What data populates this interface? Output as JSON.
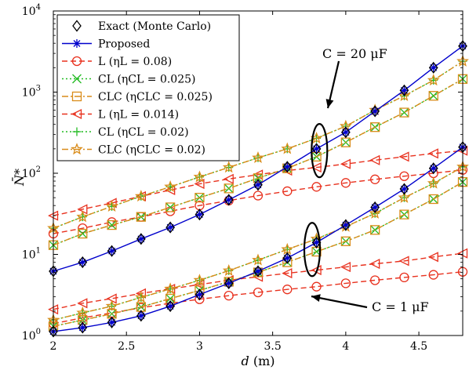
{
  "chart_data": {
    "type": "line",
    "xlabel": "d (m)",
    "ylabel": "N̄*",
    "xlim": [
      2,
      4.8
    ],
    "ylim": [
      1,
      10000
    ],
    "yscale": "log",
    "grid": false,
    "legend_position": "top-left",
    "x_ticks": [
      "2",
      "2.5",
      "3",
      "3.5",
      "4",
      "4.5"
    ],
    "y_ticks": [
      "10^0",
      "10^1",
      "10^2",
      "10^3",
      "10^4"
    ],
    "x": [
      2.0,
      2.2,
      2.4,
      2.6,
      2.8,
      3.0,
      3.2,
      3.4,
      3.6,
      3.8,
      4.0,
      4.2,
      4.4,
      4.6,
      4.8
    ],
    "annotations": {
      "top": "C = 20 μF",
      "bottom": "C = 1 μF"
    },
    "series": [
      {
        "name": "Exact (Monte Carlo)",
        "group": "C = 20 μF",
        "values": [
          6.2,
          8.0,
          11.0,
          15.5,
          21.5,
          31.0,
          47.0,
          72.0,
          120.0,
          200.0,
          320.0,
          580.0,
          1050.0,
          2000.0,
          3700.0
        ]
      },
      {
        "name": "Proposed",
        "group": "C = 20 μF",
        "values": [
          6.2,
          8.0,
          11.0,
          15.5,
          21.5,
          31.0,
          47.0,
          72.0,
          120.0,
          200.0,
          320.0,
          580.0,
          1050.0,
          2000.0,
          3700.0
        ]
      },
      {
        "name": "L (ηL = 0.08)",
        "group": "C = 20 μF",
        "values": [
          18.0,
          21.0,
          25.0,
          29.0,
          34.0,
          40.0,
          46.0,
          53.0,
          60.0,
          68.0,
          76.0,
          84.0,
          92.0,
          100.0,
          110.0
        ]
      },
      {
        "name": "CL (ηCL = 0.025)",
        "group": "C = 20 μF",
        "values": [
          13.0,
          18.0,
          23.0,
          29.0,
          38.0,
          50.0,
          65.0,
          87.0,
          115.0,
          160.0,
          240.0,
          370.0,
          560.0,
          900.0,
          1450.0
        ]
      },
      {
        "name": "CLC (ηCLC = 0.025)",
        "group": "C = 20 μF",
        "values": [
          13.0,
          18.0,
          23.0,
          29.0,
          38.0,
          50.0,
          65.0,
          87.0,
          115.0,
          160.0,
          240.0,
          370.0,
          560.0,
          900.0,
          1450.0
        ]
      },
      {
        "name": "L (ηL = 0.014)",
        "group": "C = 20 μF",
        "values": [
          30.0,
          36.0,
          43.0,
          52.0,
          62.0,
          74.0,
          85.0,
          96.0,
          108.0,
          118.0,
          130.0,
          145.0,
          160.0,
          175.0,
          190.0
        ]
      },
      {
        "name": "CL (ηCL = 0.02)",
        "group": "C = 20 μF",
        "values": [
          21.0,
          29.0,
          39.0,
          52.0,
          68.0,
          90.0,
          118.0,
          155.0,
          200.0,
          270.0,
          380.0,
          600.0,
          900.0,
          1400.0,
          2400.0
        ]
      },
      {
        "name": "CLC (ηCLC = 0.02)",
        "group": "C = 20 μF",
        "values": [
          21.0,
          29.0,
          39.0,
          52.0,
          68.0,
          90.0,
          118.0,
          155.0,
          200.0,
          270.0,
          380.0,
          600.0,
          900.0,
          1400.0,
          2400.0
        ]
      },
      {
        "name": "Exact (Monte Carlo)",
        "group": "C = 1 μF",
        "values": [
          1.12,
          1.25,
          1.45,
          1.75,
          2.3,
          3.2,
          4.4,
          6.2,
          9.0,
          14.0,
          23.0,
          38.0,
          64.0,
          115.0,
          210.0
        ]
      },
      {
        "name": "Proposed",
        "group": "C = 1 μF",
        "values": [
          1.12,
          1.25,
          1.45,
          1.75,
          2.3,
          3.2,
          4.4,
          6.2,
          9.0,
          14.0,
          23.0,
          38.0,
          64.0,
          115.0,
          210.0
        ]
      },
      {
        "name": "L (ηL = 0.08)",
        "group": "C = 1 μF",
        "values": [
          1.4,
          1.65,
          1.9,
          2.2,
          2.5,
          2.8,
          3.1,
          3.4,
          3.7,
          4.0,
          4.4,
          4.8,
          5.2,
          5.6,
          6.1
        ]
      },
      {
        "name": "CL (ηCL = 0.025)",
        "group": "C = 1 μF",
        "values": [
          1.3,
          1.55,
          1.85,
          2.25,
          2.85,
          3.6,
          4.6,
          6.0,
          8.0,
          10.8,
          14.5,
          20.0,
          31.0,
          48.0,
          78.0
        ]
      },
      {
        "name": "CLC (ηCLC = 0.025)",
        "group": "C = 1 μF",
        "values": [
          1.3,
          1.55,
          1.85,
          2.25,
          2.85,
          3.6,
          4.6,
          6.0,
          8.0,
          10.8,
          14.5,
          20.0,
          31.0,
          48.0,
          78.0
        ]
      },
      {
        "name": "L (ηL = 0.014)",
        "group": "C = 1 μF",
        "values": [
          2.1,
          2.5,
          2.85,
          3.3,
          3.75,
          4.25,
          4.8,
          5.3,
          5.85,
          6.4,
          7.0,
          7.65,
          8.3,
          9.3,
          10.3
        ]
      },
      {
        "name": "CL (ηCL = 0.02)",
        "group": "C = 1 μF",
        "values": [
          1.55,
          1.9,
          2.3,
          2.95,
          3.75,
          4.8,
          6.3,
          8.5,
          11.5,
          15.5,
          22.0,
          32.0,
          50.0,
          75.0,
          120.0
        ]
      },
      {
        "name": "CLC (ηCLC = 0.02)",
        "group": "C = 1 μF",
        "values": [
          1.55,
          1.9,
          2.3,
          2.95,
          3.75,
          4.8,
          6.3,
          8.5,
          11.5,
          15.5,
          22.0,
          32.0,
          50.0,
          75.0,
          120.0
        ]
      }
    ]
  },
  "legend": [
    {
      "label": "Exact (Monte Carlo)",
      "color": "#000000",
      "marker": "diamond",
      "dash": "none"
    },
    {
      "label": "Proposed",
      "color": "#0000cc",
      "marker": "asterisk",
      "dash": "solid"
    },
    {
      "label": "L (ηL = 0.08)",
      "color": "#e8311e",
      "marker": "circle",
      "dash": "dashed"
    },
    {
      "label": "CL (ηCL = 0.025)",
      "color": "#22bb22",
      "marker": "x",
      "dash": "dotted"
    },
    {
      "label": "CLC (ηCLC = 0.025)",
      "color": "#d98c1a",
      "marker": "square",
      "dash": "dashdot"
    },
    {
      "label": "L (ηL = 0.014)",
      "color": "#e8311e",
      "marker": "triangle-left",
      "dash": "dashed"
    },
    {
      "label": "CL (ηCL = 0.02)",
      "color": "#22bb22",
      "marker": "plus",
      "dash": "dotted"
    },
    {
      "label": "CLC (ηCLC = 0.02)",
      "color": "#d98c1a",
      "marker": "star",
      "dash": "dashdot"
    }
  ]
}
